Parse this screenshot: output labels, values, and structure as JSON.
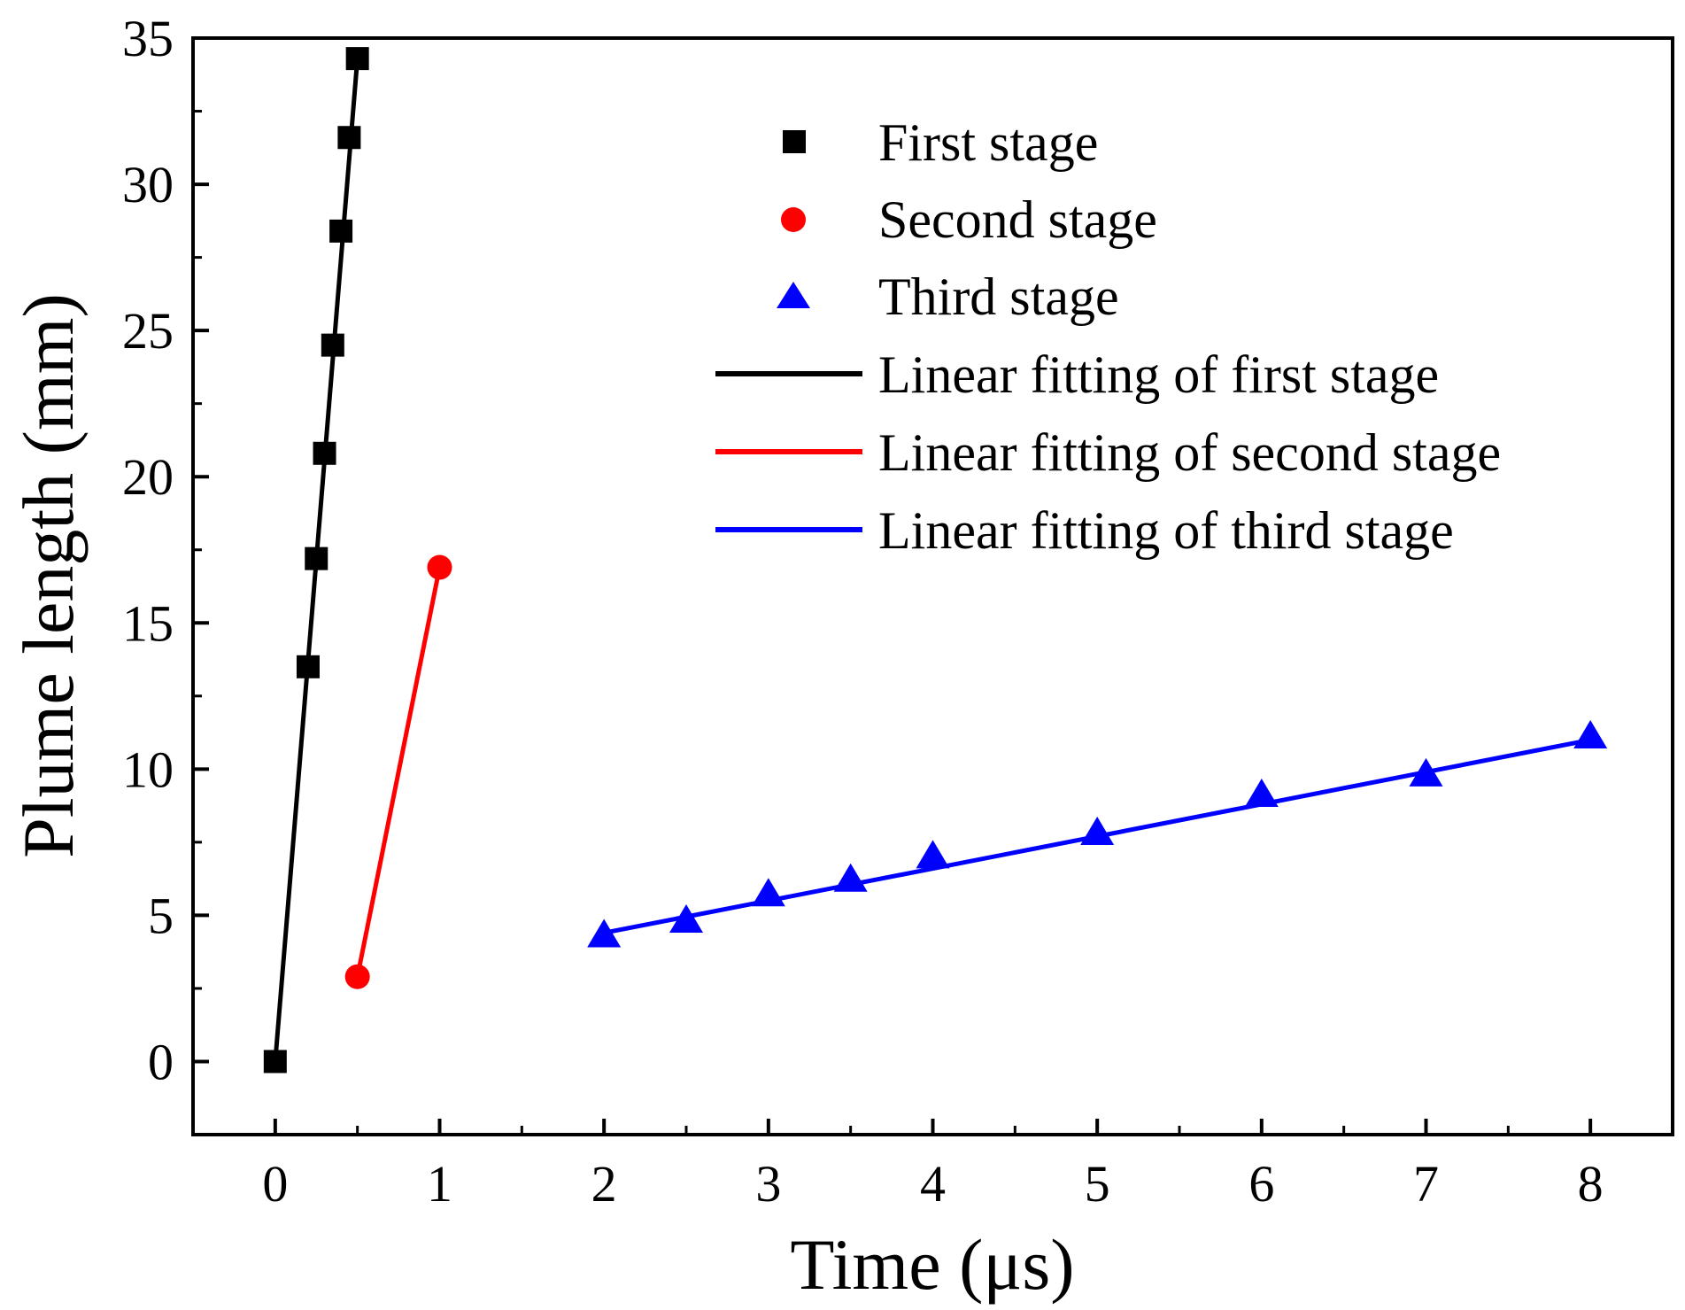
{
  "chart_data": {
    "type": "scatter",
    "title": "",
    "xlabel": "Time (μs)",
    "ylabel": "Plume length (mm)",
    "xlim": [
      -0.5,
      8.5
    ],
    "ylim": [
      -2.5,
      35
    ],
    "x_ticks": [
      0,
      1,
      2,
      3,
      4,
      5,
      6,
      7,
      8
    ],
    "y_ticks": [
      0,
      5,
      10,
      15,
      20,
      25,
      30,
      35
    ],
    "x_tick_labels": [
      "0",
      "1",
      "2",
      "3",
      "4",
      "5",
      "6",
      "7",
      "8"
    ],
    "y_tick_labels": [
      "0",
      "5",
      "10",
      "15",
      "20",
      "25",
      "30",
      "35"
    ],
    "legend_position": "top-right",
    "series": [
      {
        "name": "First stage",
        "marker": "square",
        "color": "#000000",
        "x": [
          0,
          0.2,
          0.25,
          0.3,
          0.35,
          0.4,
          0.45,
          0.5
        ],
        "y": [
          0,
          13.5,
          17.2,
          20.8,
          24.5,
          28.4,
          31.6,
          34.3
        ]
      },
      {
        "name": "Second stage",
        "marker": "circle",
        "color": "#ff0000",
        "x": [
          0.5,
          1.0
        ],
        "y": [
          2.9,
          16.9
        ]
      },
      {
        "name": "Third stage",
        "marker": "triangle",
        "color": "#0000ff",
        "x": [
          2,
          2.5,
          3,
          3.5,
          4,
          5,
          6,
          7,
          8
        ],
        "y": [
          4.3,
          4.8,
          5.7,
          6.2,
          7.0,
          7.8,
          9.1,
          9.8,
          11.1
        ]
      }
    ],
    "fits": [
      {
        "name": "Linear fitting of first stage",
        "color": "#000000",
        "x": [
          0,
          0.5
        ],
        "y": [
          0,
          34.3
        ]
      },
      {
        "name": "Linear fitting of second stage",
        "color": "#ff0000",
        "x": [
          0.5,
          1.0
        ],
        "y": [
          2.9,
          16.9
        ]
      },
      {
        "name": "Linear fitting of third stage",
        "color": "#0000ff",
        "x": [
          2,
          8
        ],
        "y": [
          4.4,
          11.0
        ]
      }
    ]
  }
}
